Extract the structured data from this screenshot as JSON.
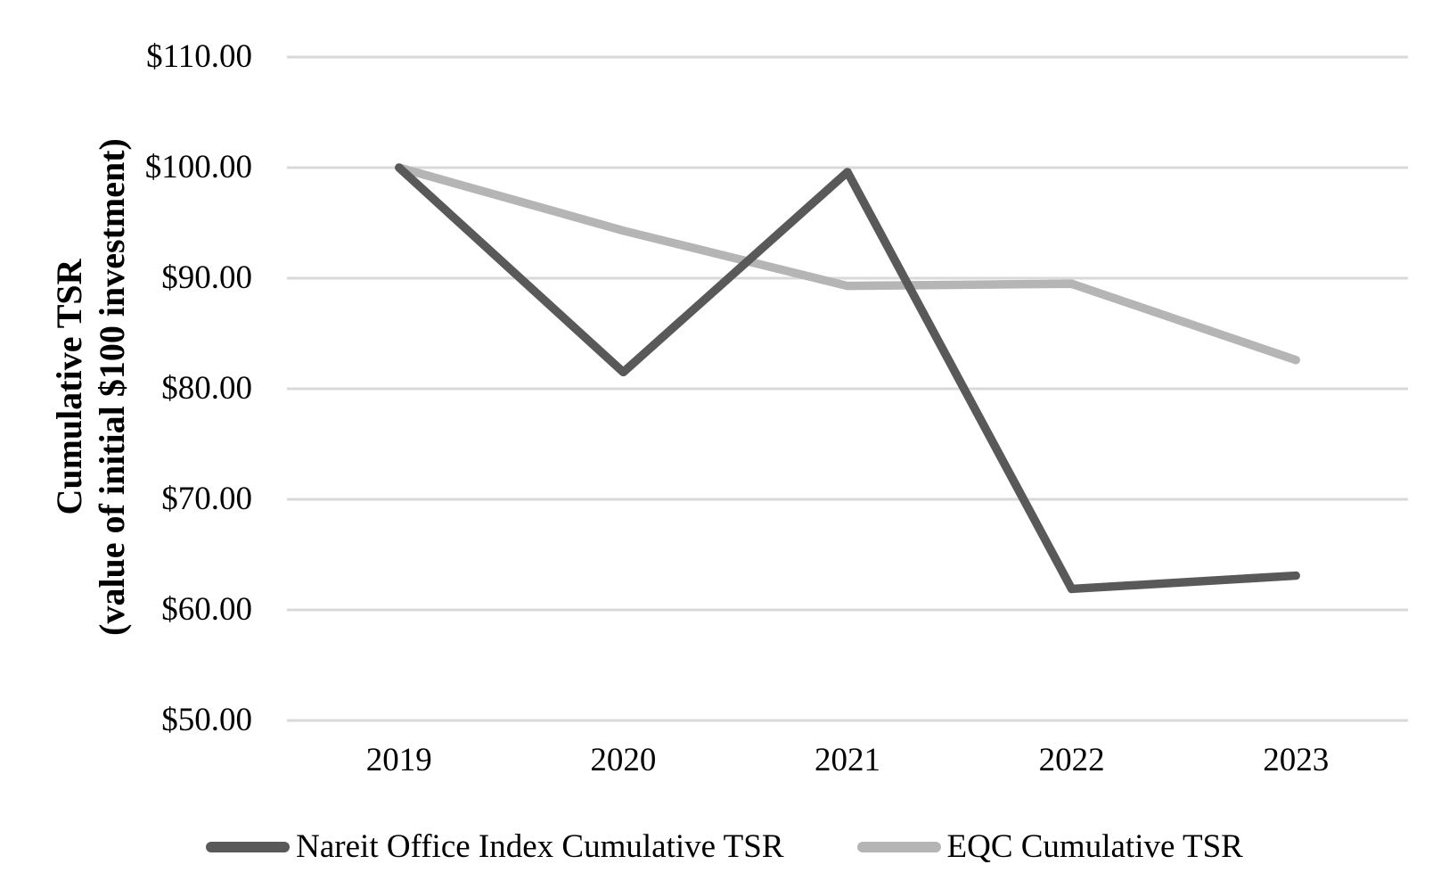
{
  "chart_data": {
    "type": "line",
    "title": "",
    "xlabel": "",
    "ylabel_line1": "Cumulative TSR",
    "ylabel_line2": "(value of initial $100 investment)",
    "categories": [
      "2019",
      "2020",
      "2021",
      "2022",
      "2023"
    ],
    "series": [
      {
        "name": "Nareit Office Index Cumulative TSR",
        "values": [
          100.0,
          81.5,
          99.6,
          61.9,
          63.1
        ],
        "color": "#595959"
      },
      {
        "name": "EQC Cumulative TSR",
        "values": [
          100.0,
          94.3,
          89.3,
          89.5,
          82.6
        ],
        "color": "#b5b5b5"
      }
    ],
    "ylim": [
      50,
      110
    ],
    "y_tick_values": [
      110,
      100,
      90,
      80,
      70,
      60,
      50
    ],
    "y_tick_labels": [
      "$110.00",
      "$100.00",
      "$90.00",
      "$80.00",
      "$70.00",
      "$60.00",
      "$50.00"
    ],
    "grid": true,
    "gridline_color": "#d9d9d9",
    "background_color": "#ffffff",
    "legend_position": "bottom"
  }
}
